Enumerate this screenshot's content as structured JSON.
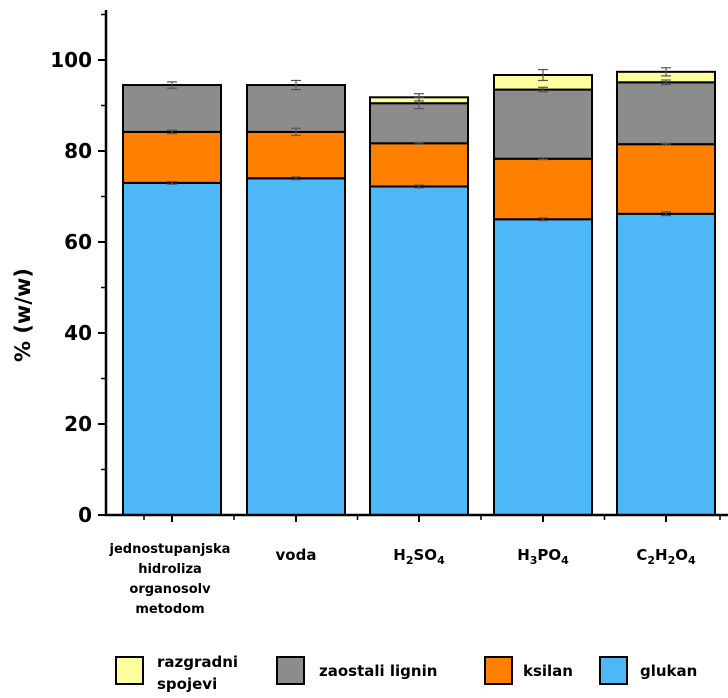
{
  "chart_data": {
    "type": "bar",
    "stacked": true,
    "ylabel": "% (w/w)",
    "ylim": [
      0,
      112
    ],
    "yticks": [
      "0",
      "20",
      "40",
      "60",
      "80",
      "100"
    ],
    "categories": [
      {
        "lines": [
          "jednostupanjska",
          "hidroliza",
          "organosolv",
          "metodom"
        ]
      },
      {
        "lines": [
          "voda"
        ]
      },
      {
        "lines": [
          "H",
          "2",
          "SO",
          "4"
        ],
        "formula": true
      },
      {
        "lines": [
          "H",
          "3",
          "PO",
          "4"
        ],
        "formula": true
      },
      {
        "lines": [
          "C",
          "2",
          "H",
          "2",
          "O",
          "4"
        ],
        "formula": true
      }
    ],
    "series": [
      {
        "name": "glukan",
        "color": "#4DB8F5",
        "values": [
          73,
          74,
          72.2,
          65,
          66.2
        ],
        "errors": [
          0.3,
          0.3,
          0.3,
          0.3,
          0.4
        ]
      },
      {
        "name": "ksilan",
        "color": "#FF8000",
        "values": [
          11.2,
          10.2,
          9.5,
          13.3,
          15.3
        ],
        "errors": [
          0.4,
          0.8,
          0.2,
          0.2,
          0.2
        ]
      },
      {
        "name": "zaostali lignin",
        "color": "#8C8C8C",
        "values": [
          10.3,
          10.3,
          8.8,
          15.2,
          13.6
        ],
        "errors": [
          0.7,
          1.0,
          1.2,
          0.5,
          0.5
        ]
      },
      {
        "name": "razgradni spojevi",
        "color": "#FFFFA0",
        "values": [
          0,
          0,
          1.3,
          3.2,
          2.3
        ],
        "errors": [
          0,
          0,
          0.8,
          1.2,
          0.9
        ]
      }
    ],
    "legend": {
      "position": "bottom",
      "items": [
        {
          "lines": [
            "razgradni",
            "spojevi"
          ],
          "color": "#FFFFA0"
        },
        {
          "lines": [
            "zaostali lignin"
          ],
          "color": "#8C8C8C"
        },
        {
          "lines": [
            "ksilan"
          ],
          "color": "#FF8000"
        },
        {
          "lines": [
            "glukan"
          ],
          "color": "#4DB8F5"
        }
      ]
    }
  }
}
